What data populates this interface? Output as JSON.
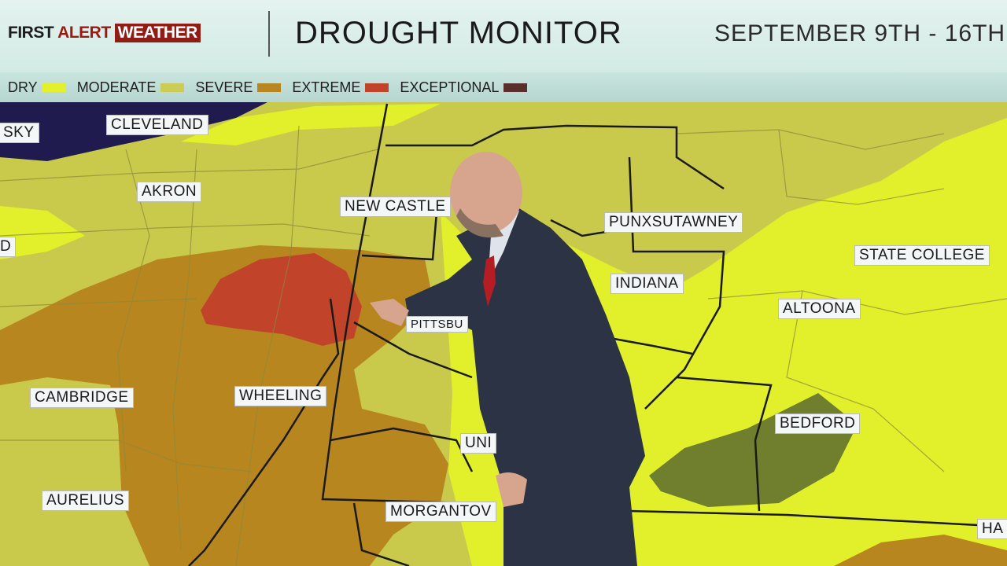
{
  "header": {
    "brand": {
      "first": "FIRST",
      "alert": "ALERT",
      "weather": "WEATHER"
    },
    "title": "DROUGHT MONITOR",
    "dates": "SEPTEMBER 9TH - 16TH"
  },
  "legend": [
    {
      "label": "DRY",
      "color": "#e4f02c"
    },
    {
      "label": "MODERATE",
      "color": "#cccc55"
    },
    {
      "label": "SEVERE",
      "color": "#b8861e"
    },
    {
      "label": "EXTREME",
      "color": "#c0432a"
    },
    {
      "label": "EXCEPTIONAL",
      "color": "#5a2e2a"
    }
  ],
  "map_labels": {
    "sky": "SKY",
    "cleveland": "CLEVELAND",
    "akron": "AKRON",
    "d": "D",
    "new_castle": "NEW CASTLE",
    "punxsutawney": "PUNXSUTAWNEY",
    "state_college": "STATE COLLEGE",
    "indiana": "INDIANA",
    "altoona": "ALTOONA",
    "pittsburgh": "PITTSBU",
    "cambridge": "CAMBRIDGE",
    "wheeling": "WHEELING",
    "bedford": "BEDFORD",
    "uni": "UNI",
    "aurelius": "AURELIUS",
    "morgantown": "MORGANTOV",
    "ha": "HA"
  }
}
